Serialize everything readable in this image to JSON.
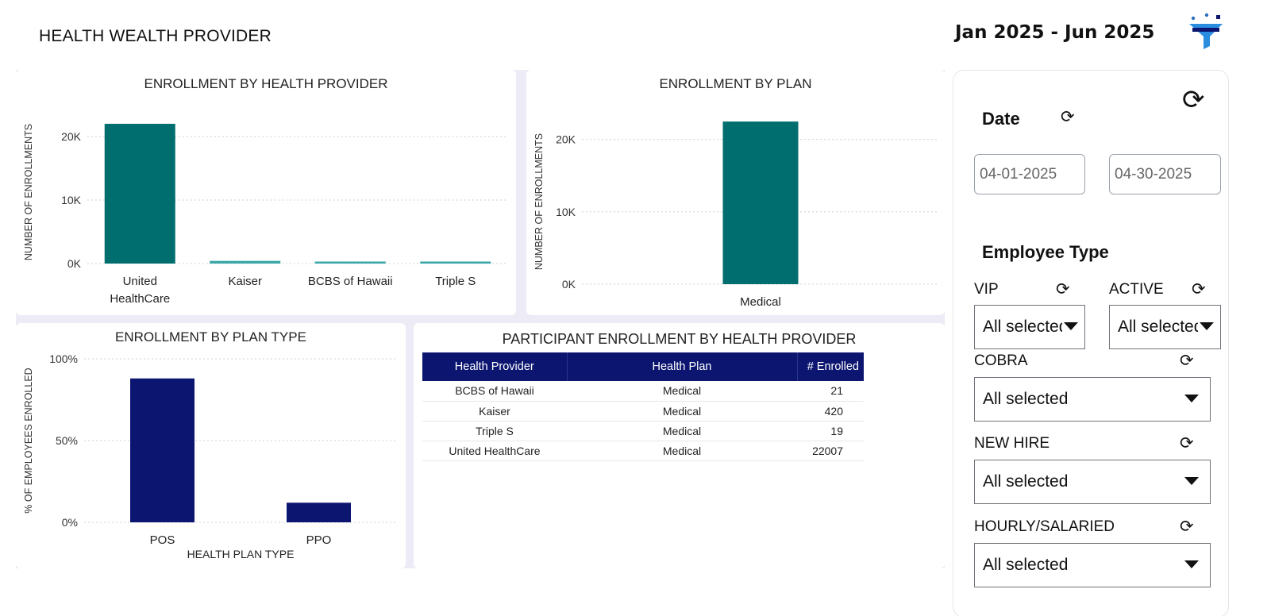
{
  "header": {
    "title": "HEALTH WEALTH PROVIDER",
    "date_range": "Jan 2025 - Jun 2025",
    "filter_icon": "funnel-filter-icon"
  },
  "colors": {
    "teal": "#006e6e",
    "navy": "#0c1670",
    "panel_bg": "#ecebf6"
  },
  "charts": [
    {
      "id": "provider",
      "title": "ENROLLMENT BY HEALTH PROVIDER"
    },
    {
      "id": "plan",
      "title": "ENROLLMENT BY PLAN"
    },
    {
      "id": "plantype",
      "title": "ENROLLMENT BY PLAN TYPE"
    }
  ],
  "chart_data": [
    {
      "type": "bar",
      "title": "ENROLLMENT BY HEALTH PROVIDER",
      "ylabel": "NUMBER OF ENROLLMENTS",
      "xlabel": "",
      "categories": [
        "United HealthCare",
        "Kaiser",
        "BCBS of Hawaii",
        "Triple S"
      ],
      "values": [
        22007,
        420,
        21,
        19
      ],
      "yticks": [
        "0K",
        "10K",
        "20K"
      ],
      "ylim": [
        0,
        25000
      ],
      "grid": true
    },
    {
      "type": "bar",
      "title": "ENROLLMENT BY PLAN",
      "ylabel": "NUMBER OF ENROLLMENTS",
      "xlabel": "",
      "categories": [
        "Medical"
      ],
      "values": [
        22467
      ],
      "yticks": [
        "0K",
        "10K",
        "20K"
      ],
      "ylim": [
        0,
        25000
      ],
      "grid": true
    },
    {
      "type": "bar",
      "title": "ENROLLMENT BY PLAN TYPE",
      "ylabel": "% OF EMPLOYEES ENROLLED",
      "xlabel": "HEALTH PLAN TYPE",
      "categories": [
        "POS",
        "PPO"
      ],
      "values": [
        88,
        12
      ],
      "yticks": [
        "0%",
        "50%",
        "100%"
      ],
      "ylim": [
        0,
        100
      ],
      "grid": true
    }
  ],
  "table": {
    "title": "PARTICIPANT ENROLLMENT BY HEALTH PROVIDER",
    "columns": [
      "Health Provider",
      "Health Plan",
      "# Enrolled"
    ],
    "rows": [
      [
        "BCBS of Hawaii",
        "Medical",
        "21"
      ],
      [
        "Kaiser",
        "Medical",
        "420"
      ],
      [
        "Triple S",
        "Medical",
        "19"
      ],
      [
        "United HealthCare",
        "Medical",
        "22007"
      ]
    ]
  },
  "sidebar": {
    "refresh_icon": "refresh-icon",
    "date": {
      "label": "Date",
      "start": "04-01-2025",
      "end": "04-30-2025"
    },
    "employee_type": {
      "label": "Employee Type",
      "vip": {
        "label": "VIP",
        "value": "All selected"
      },
      "active": {
        "label": "ACTIVE",
        "value": "All selected"
      },
      "cobra": {
        "label": "COBRA",
        "value": "All selected"
      },
      "new_hire": {
        "label": "NEW HIRE",
        "value": "All selected"
      },
      "hourly_salaried": {
        "label": "HOURLY/SALARIED",
        "value": "All selected"
      }
    }
  }
}
